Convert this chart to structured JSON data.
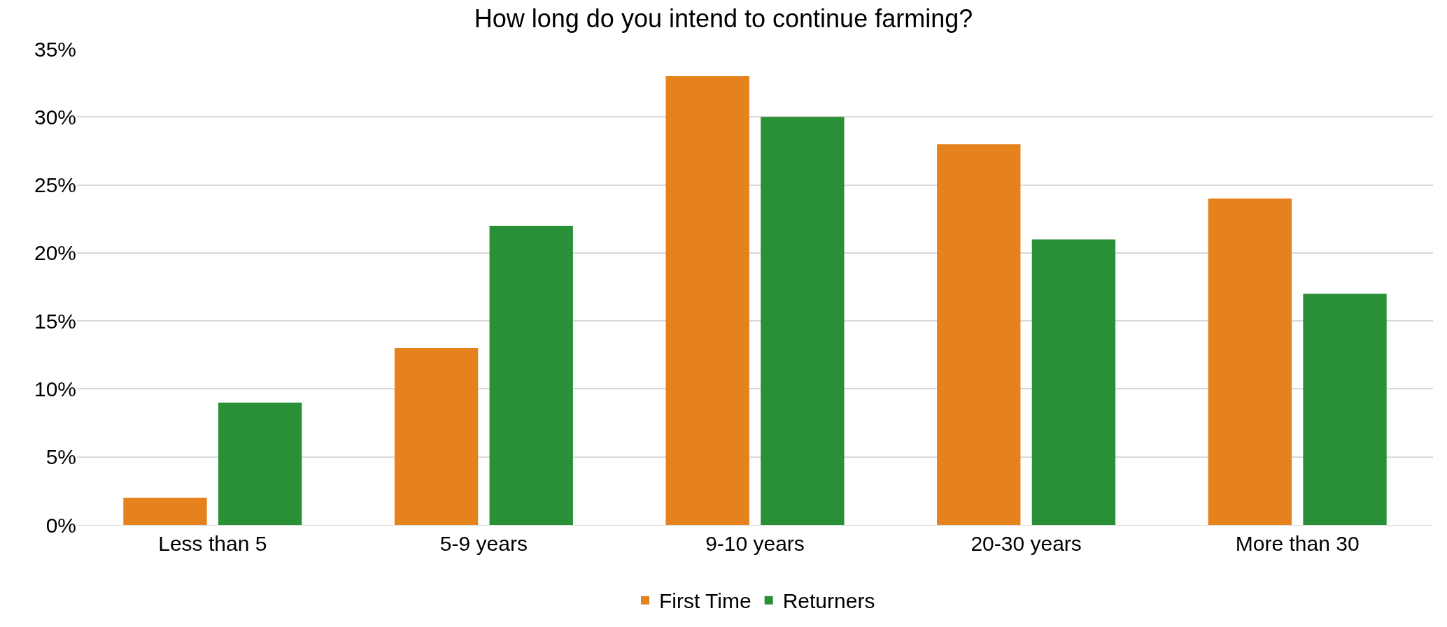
{
  "chart_data": {
    "type": "bar",
    "title": "How long do you intend to continue farming?",
    "categories": [
      "Less than 5",
      "5-9 years",
      "9-10 years",
      "20-30 years",
      "More than 30"
    ],
    "series": [
      {
        "name": "First Time",
        "color": "#e6821e",
        "values": [
          2,
          13,
          33,
          28,
          24
        ]
      },
      {
        "name": "Returners",
        "color": "#2a9038",
        "values": [
          9,
          22,
          30,
          21,
          17
        ]
      }
    ],
    "ylim": [
      0,
      35
    ],
    "yticks": [
      {
        "value": 0,
        "label": "0%"
      },
      {
        "value": 5,
        "label": "5%"
      },
      {
        "value": 10,
        "label": "10%"
      },
      {
        "value": 15,
        "label": "15%"
      },
      {
        "value": 20,
        "label": "20%"
      },
      {
        "value": 25,
        "label": "25%"
      },
      {
        "value": 30,
        "label": "30%"
      },
      {
        "value": 35,
        "label": "35%"
      }
    ],
    "grid": "y",
    "legend": "bottom"
  }
}
